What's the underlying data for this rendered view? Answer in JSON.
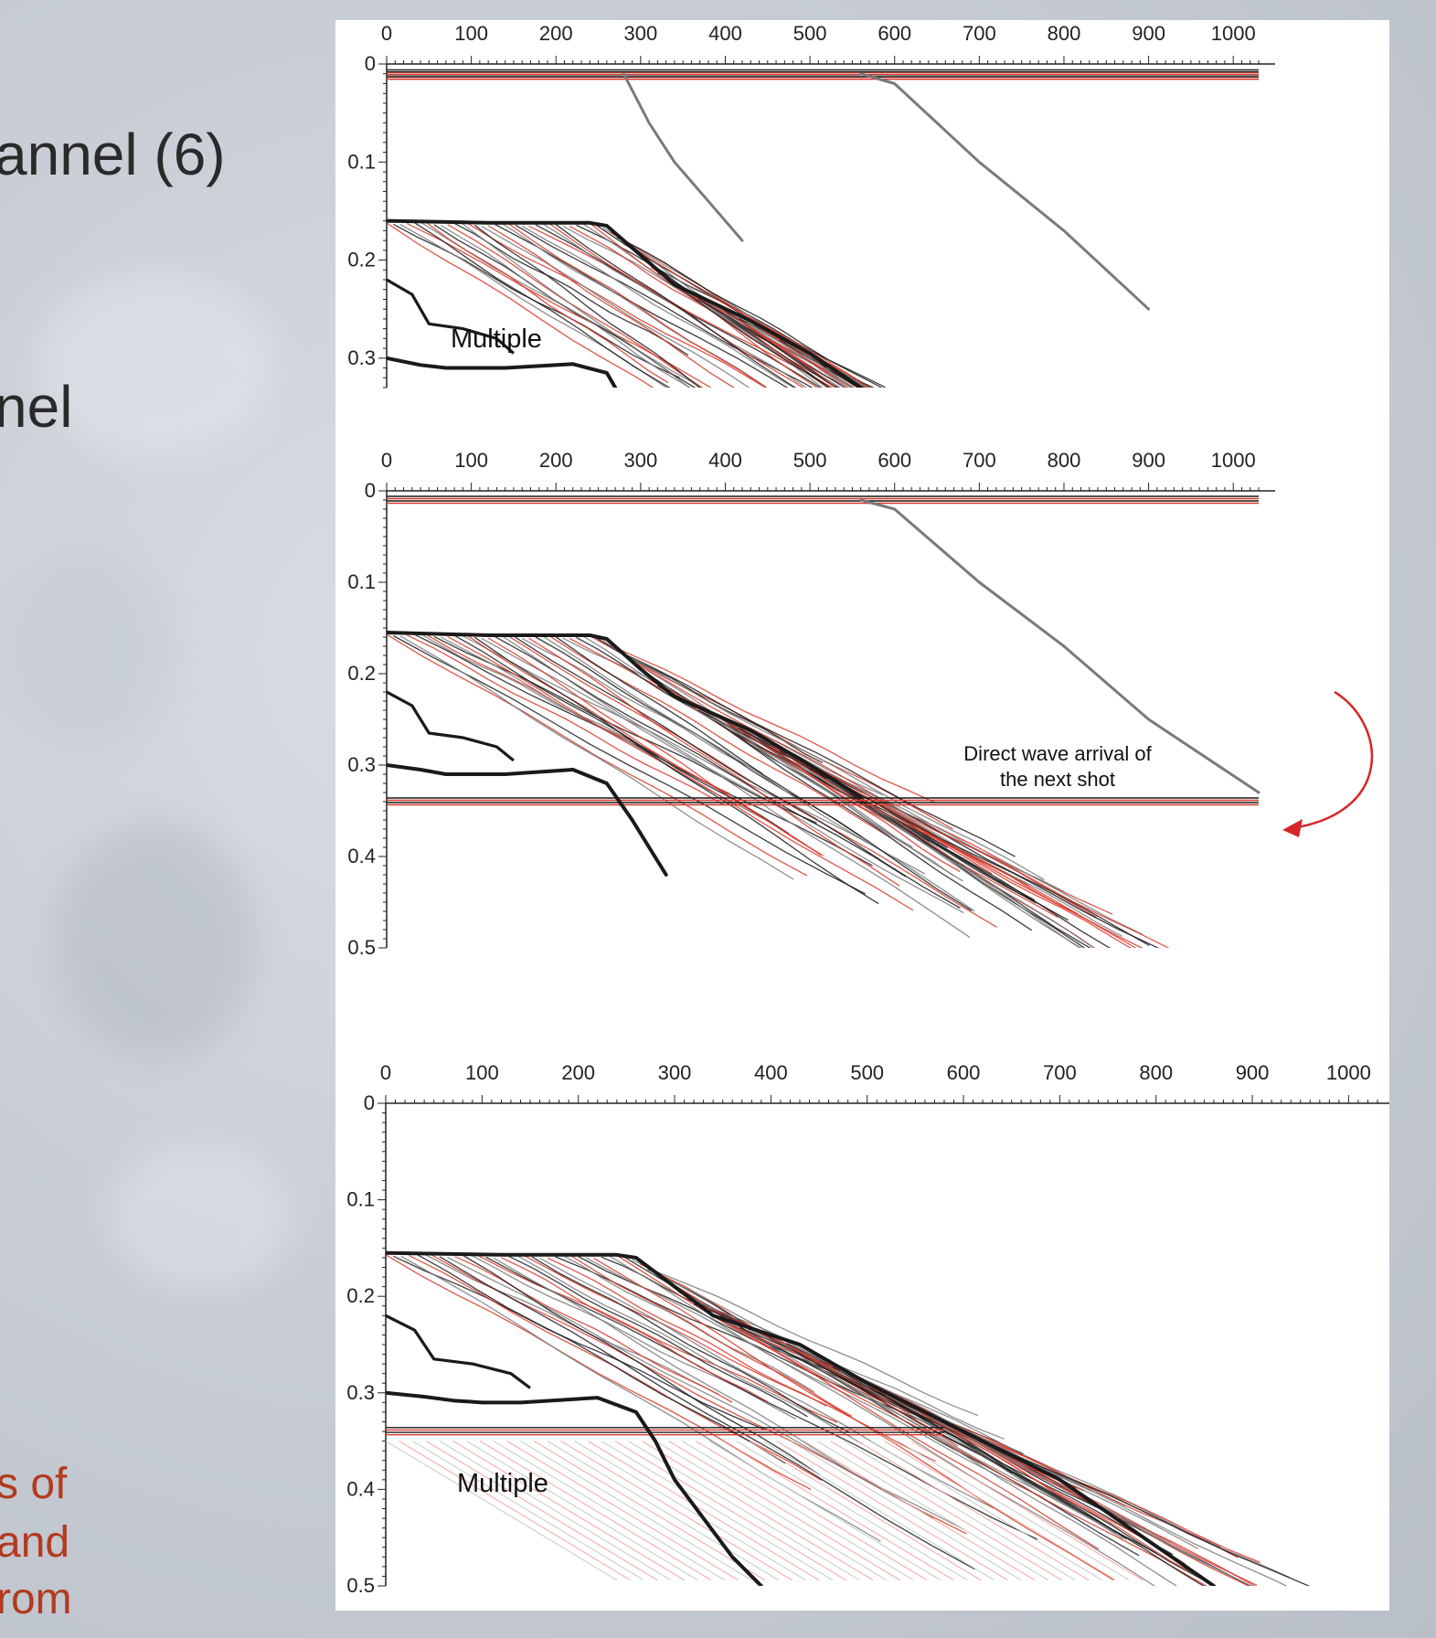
{
  "slide": {
    "left_text_lines": [
      "annel (6)",
      "nel"
    ],
    "left_note_lines": [
      "s of",
      "and",
      "rom"
    ]
  },
  "colors": {
    "red": "#d7372a",
    "light_red": "#f0a9a2",
    "gray": "#7a7a7a",
    "light_gray": "#c9c9c9",
    "black": "#1a1a1a",
    "arrow": "#d7262a"
  },
  "chart_data": [
    {
      "type": "line",
      "title": "",
      "xlabel": "",
      "ylabel": "",
      "x_ticks": [
        "0",
        "100",
        "200",
        "300",
        "400",
        "500",
        "600",
        "700",
        "800",
        "900",
        "1000"
      ],
      "y_ticks": [
        "0",
        "0.1",
        "0.2",
        "0.3"
      ],
      "xlim": [
        0,
        1030
      ],
      "ylim": [
        0,
        0.33
      ],
      "grid": false,
      "series": [
        {
          "color": "black",
          "x": [
            0,
            120,
            240,
            260,
            300,
            340,
            430,
            500,
            560
          ],
          "y": [
            0.16,
            0.162,
            0.162,
            0.165,
            0.195,
            0.225,
            0.262,
            0.295,
            0.33
          ]
        },
        {
          "color": "black",
          "x": [
            0,
            40,
            70,
            100,
            140,
            220,
            260,
            270
          ],
          "y": [
            0.3,
            0.307,
            0.31,
            0.31,
            0.31,
            0.306,
            0.315,
            0.33
          ]
        },
        {
          "color": "gray",
          "x": [
            280,
            310,
            340,
            380,
            420
          ],
          "y": [
            0.01,
            0.06,
            0.1,
            0.14,
            0.18
          ]
        },
        {
          "color": "gray",
          "x": [
            560,
            600,
            700,
            800,
            900
          ],
          "y": [
            0.01,
            0.02,
            0.1,
            0.17,
            0.25
          ]
        }
      ],
      "annotations": [
        "Multiple"
      ]
    },
    {
      "type": "line",
      "title": "",
      "xlabel": "",
      "ylabel": "",
      "x_ticks": [
        "0",
        "100",
        "200",
        "300",
        "400",
        "500",
        "600",
        "700",
        "800",
        "900",
        "1000"
      ],
      "y_ticks": [
        "0",
        "0.1",
        "0.2",
        "0.3",
        "0.4",
        "0.5"
      ],
      "xlim": [
        0,
        1030
      ],
      "ylim": [
        0,
        0.5
      ],
      "grid": false,
      "series": [
        {
          "color": "black",
          "x": [
            0,
            120,
            240,
            260,
            300,
            340,
            430,
            500,
            560
          ],
          "y": [
            0.155,
            0.158,
            0.158,
            0.162,
            0.195,
            0.225,
            0.262,
            0.3,
            0.335
          ]
        },
        {
          "color": "black",
          "x": [
            0,
            40,
            70,
            100,
            140,
            220,
            260,
            290,
            330
          ],
          "y": [
            0.3,
            0.305,
            0.31,
            0.31,
            0.31,
            0.305,
            0.32,
            0.36,
            0.42
          ]
        },
        {
          "color": "gray",
          "x": [
            560,
            600,
            700,
            800,
            900,
            1030
          ],
          "y": [
            0.01,
            0.02,
            0.1,
            0.17,
            0.25,
            0.33
          ]
        }
      ],
      "horizontal_bands": [
        0.01,
        0.34
      ],
      "annotations": [
        "Direct wave arrival of",
        "the next shot"
      ]
    },
    {
      "type": "line",
      "title": "",
      "xlabel": "",
      "ylabel": "",
      "x_ticks": [
        "0",
        "100",
        "200",
        "300",
        "400",
        "500",
        "600",
        "700",
        "800",
        "900",
        "1000"
      ],
      "y_ticks": [
        "0",
        "0.1",
        "0.2",
        "0.3",
        "0.4",
        "0.5"
      ],
      "xlim": [
        0,
        1030
      ],
      "ylim": [
        0,
        0.5
      ],
      "grid": false,
      "series": [
        {
          "color": "black",
          "x": [
            0,
            120,
            240,
            260,
            300,
            340,
            430,
            500,
            600,
            700,
            860
          ],
          "y": [
            0.155,
            0.157,
            0.157,
            0.16,
            0.19,
            0.22,
            0.25,
            0.29,
            0.34,
            0.39,
            0.5
          ]
        },
        {
          "color": "black",
          "x": [
            0,
            40,
            70,
            100,
            140,
            220,
            260,
            280,
            300,
            330,
            360,
            390
          ],
          "y": [
            0.3,
            0.304,
            0.308,
            0.31,
            0.31,
            0.305,
            0.32,
            0.35,
            0.39,
            0.43,
            0.47,
            0.5
          ]
        }
      ],
      "horizontal_bands": [
        0.34
      ],
      "annotations": [
        "Multiple"
      ]
    }
  ]
}
